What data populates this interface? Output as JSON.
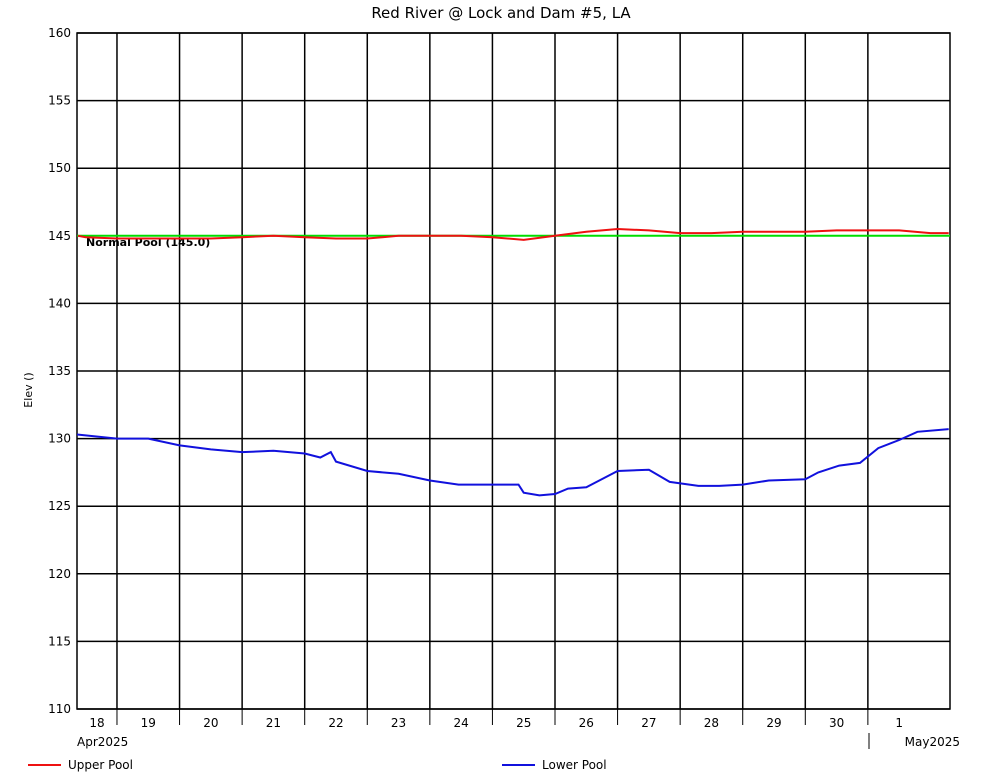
{
  "chart_data": {
    "type": "line",
    "title": "Red River @ Lock and Dam #5, LA",
    "y_label": "Elev ()",
    "month_labels": [
      "Apr2025",
      "May2025"
    ],
    "xlim": [
      "2025-04-18T08:40",
      "2025-05-02T07:30"
    ],
    "xticks": [
      {
        "value": "2025-04-18T00:00",
        "label": "18"
      },
      {
        "value": "2025-04-19T00:00",
        "label": "19"
      },
      {
        "value": "2025-04-20T00:00",
        "label": "20"
      },
      {
        "value": "2025-04-21T00:00",
        "label": "21"
      },
      {
        "value": "2025-04-22T00:00",
        "label": "22"
      },
      {
        "value": "2025-04-23T00:00",
        "label": "23"
      },
      {
        "value": "2025-04-24T00:00",
        "label": "24"
      },
      {
        "value": "2025-04-25T00:00",
        "label": "25"
      },
      {
        "value": "2025-04-26T00:00",
        "label": "26"
      },
      {
        "value": "2025-04-27T00:00",
        "label": "27"
      },
      {
        "value": "2025-04-28T00:00",
        "label": "28"
      },
      {
        "value": "2025-04-29T00:00",
        "label": "29"
      },
      {
        "value": "2025-04-30T00:00",
        "label": "30"
      },
      {
        "value": "2025-05-01T00:00",
        "label": "1"
      }
    ],
    "ylim": [
      110,
      160
    ],
    "yticks": [
      110,
      115,
      120,
      125,
      130,
      135,
      140,
      145,
      150,
      155,
      160
    ],
    "grid": true,
    "reference": {
      "value": 145,
      "label": "Normal Pool (145.0)",
      "color": "#00dd00"
    },
    "series": [
      {
        "name": "Upper Pool",
        "color": "#ee1111",
        "x": [
          "2025-04-18T09:00",
          "2025-04-18T12:00",
          "2025-04-19T00:00",
          "2025-04-19T12:00",
          "2025-04-20T00:00",
          "2025-04-20T12:00",
          "2025-04-21T00:00",
          "2025-04-21T12:00",
          "2025-04-22T00:00",
          "2025-04-22T12:00",
          "2025-04-23T00:00",
          "2025-04-23T12:00",
          "2025-04-24T00:00",
          "2025-04-24T12:00",
          "2025-04-25T00:00",
          "2025-04-25T12:00",
          "2025-04-26T00:00",
          "2025-04-26T12:00",
          "2025-04-27T00:00",
          "2025-04-27T12:00",
          "2025-04-28T00:00",
          "2025-04-28T12:00",
          "2025-04-29T00:00",
          "2025-04-29T12:00",
          "2025-04-30T00:00",
          "2025-04-30T12:00",
          "2025-05-01T00:00",
          "2025-05-01T12:00",
          "2025-05-02T00:00",
          "2025-05-02T07:00"
        ],
        "values": [
          145.0,
          144.9,
          144.8,
          144.8,
          144.8,
          144.8,
          144.9,
          145.0,
          144.9,
          144.8,
          144.8,
          145.0,
          145.0,
          145.0,
          144.9,
          144.7,
          145.0,
          145.3,
          145.5,
          145.4,
          145.2,
          145.2,
          145.3,
          145.3,
          145.3,
          145.4,
          145.4,
          145.4,
          145.2,
          145.2
        ]
      },
      {
        "name": "Lower Pool",
        "color": "#1111dd",
        "x": [
          "2025-04-18T08:40",
          "2025-04-19T00:00",
          "2025-04-19T12:00",
          "2025-04-20T00:00",
          "2025-04-20T12:00",
          "2025-04-21T00:00",
          "2025-04-21T12:00",
          "2025-04-22T00:00",
          "2025-04-22T06:00",
          "2025-04-22T10:00",
          "2025-04-22T12:00",
          "2025-04-23T00:00",
          "2025-04-23T12:00",
          "2025-04-24T00:00",
          "2025-04-24T11:00",
          "2025-04-25T00:00",
          "2025-04-25T10:00",
          "2025-04-25T12:00",
          "2025-04-25T18:00",
          "2025-04-26T00:00",
          "2025-04-26T05:00",
          "2025-04-26T12:00",
          "2025-04-26T17:00",
          "2025-04-27T00:00",
          "2025-04-27T12:00",
          "2025-04-27T20:00",
          "2025-04-28T07:00",
          "2025-04-28T15:00",
          "2025-04-29T00:00",
          "2025-04-29T10:00",
          "2025-04-30T00:00",
          "2025-04-30T05:00",
          "2025-04-30T13:00",
          "2025-04-30T21:00",
          "2025-05-01T04:00",
          "2025-05-01T12:00",
          "2025-05-01T19:00",
          "2025-05-02T07:00"
        ],
        "values": [
          130.3,
          130.0,
          130.0,
          129.5,
          129.2,
          129.0,
          129.1,
          128.9,
          128.6,
          129.0,
          128.3,
          127.6,
          127.4,
          126.9,
          126.6,
          126.6,
          126.6,
          126.0,
          125.8,
          125.9,
          126.3,
          126.4,
          126.9,
          127.6,
          127.7,
          126.8,
          126.5,
          126.5,
          126.6,
          126.9,
          127.0,
          127.5,
          128.0,
          128.2,
          129.3,
          129.9,
          130.5,
          130.7
        ]
      }
    ]
  }
}
